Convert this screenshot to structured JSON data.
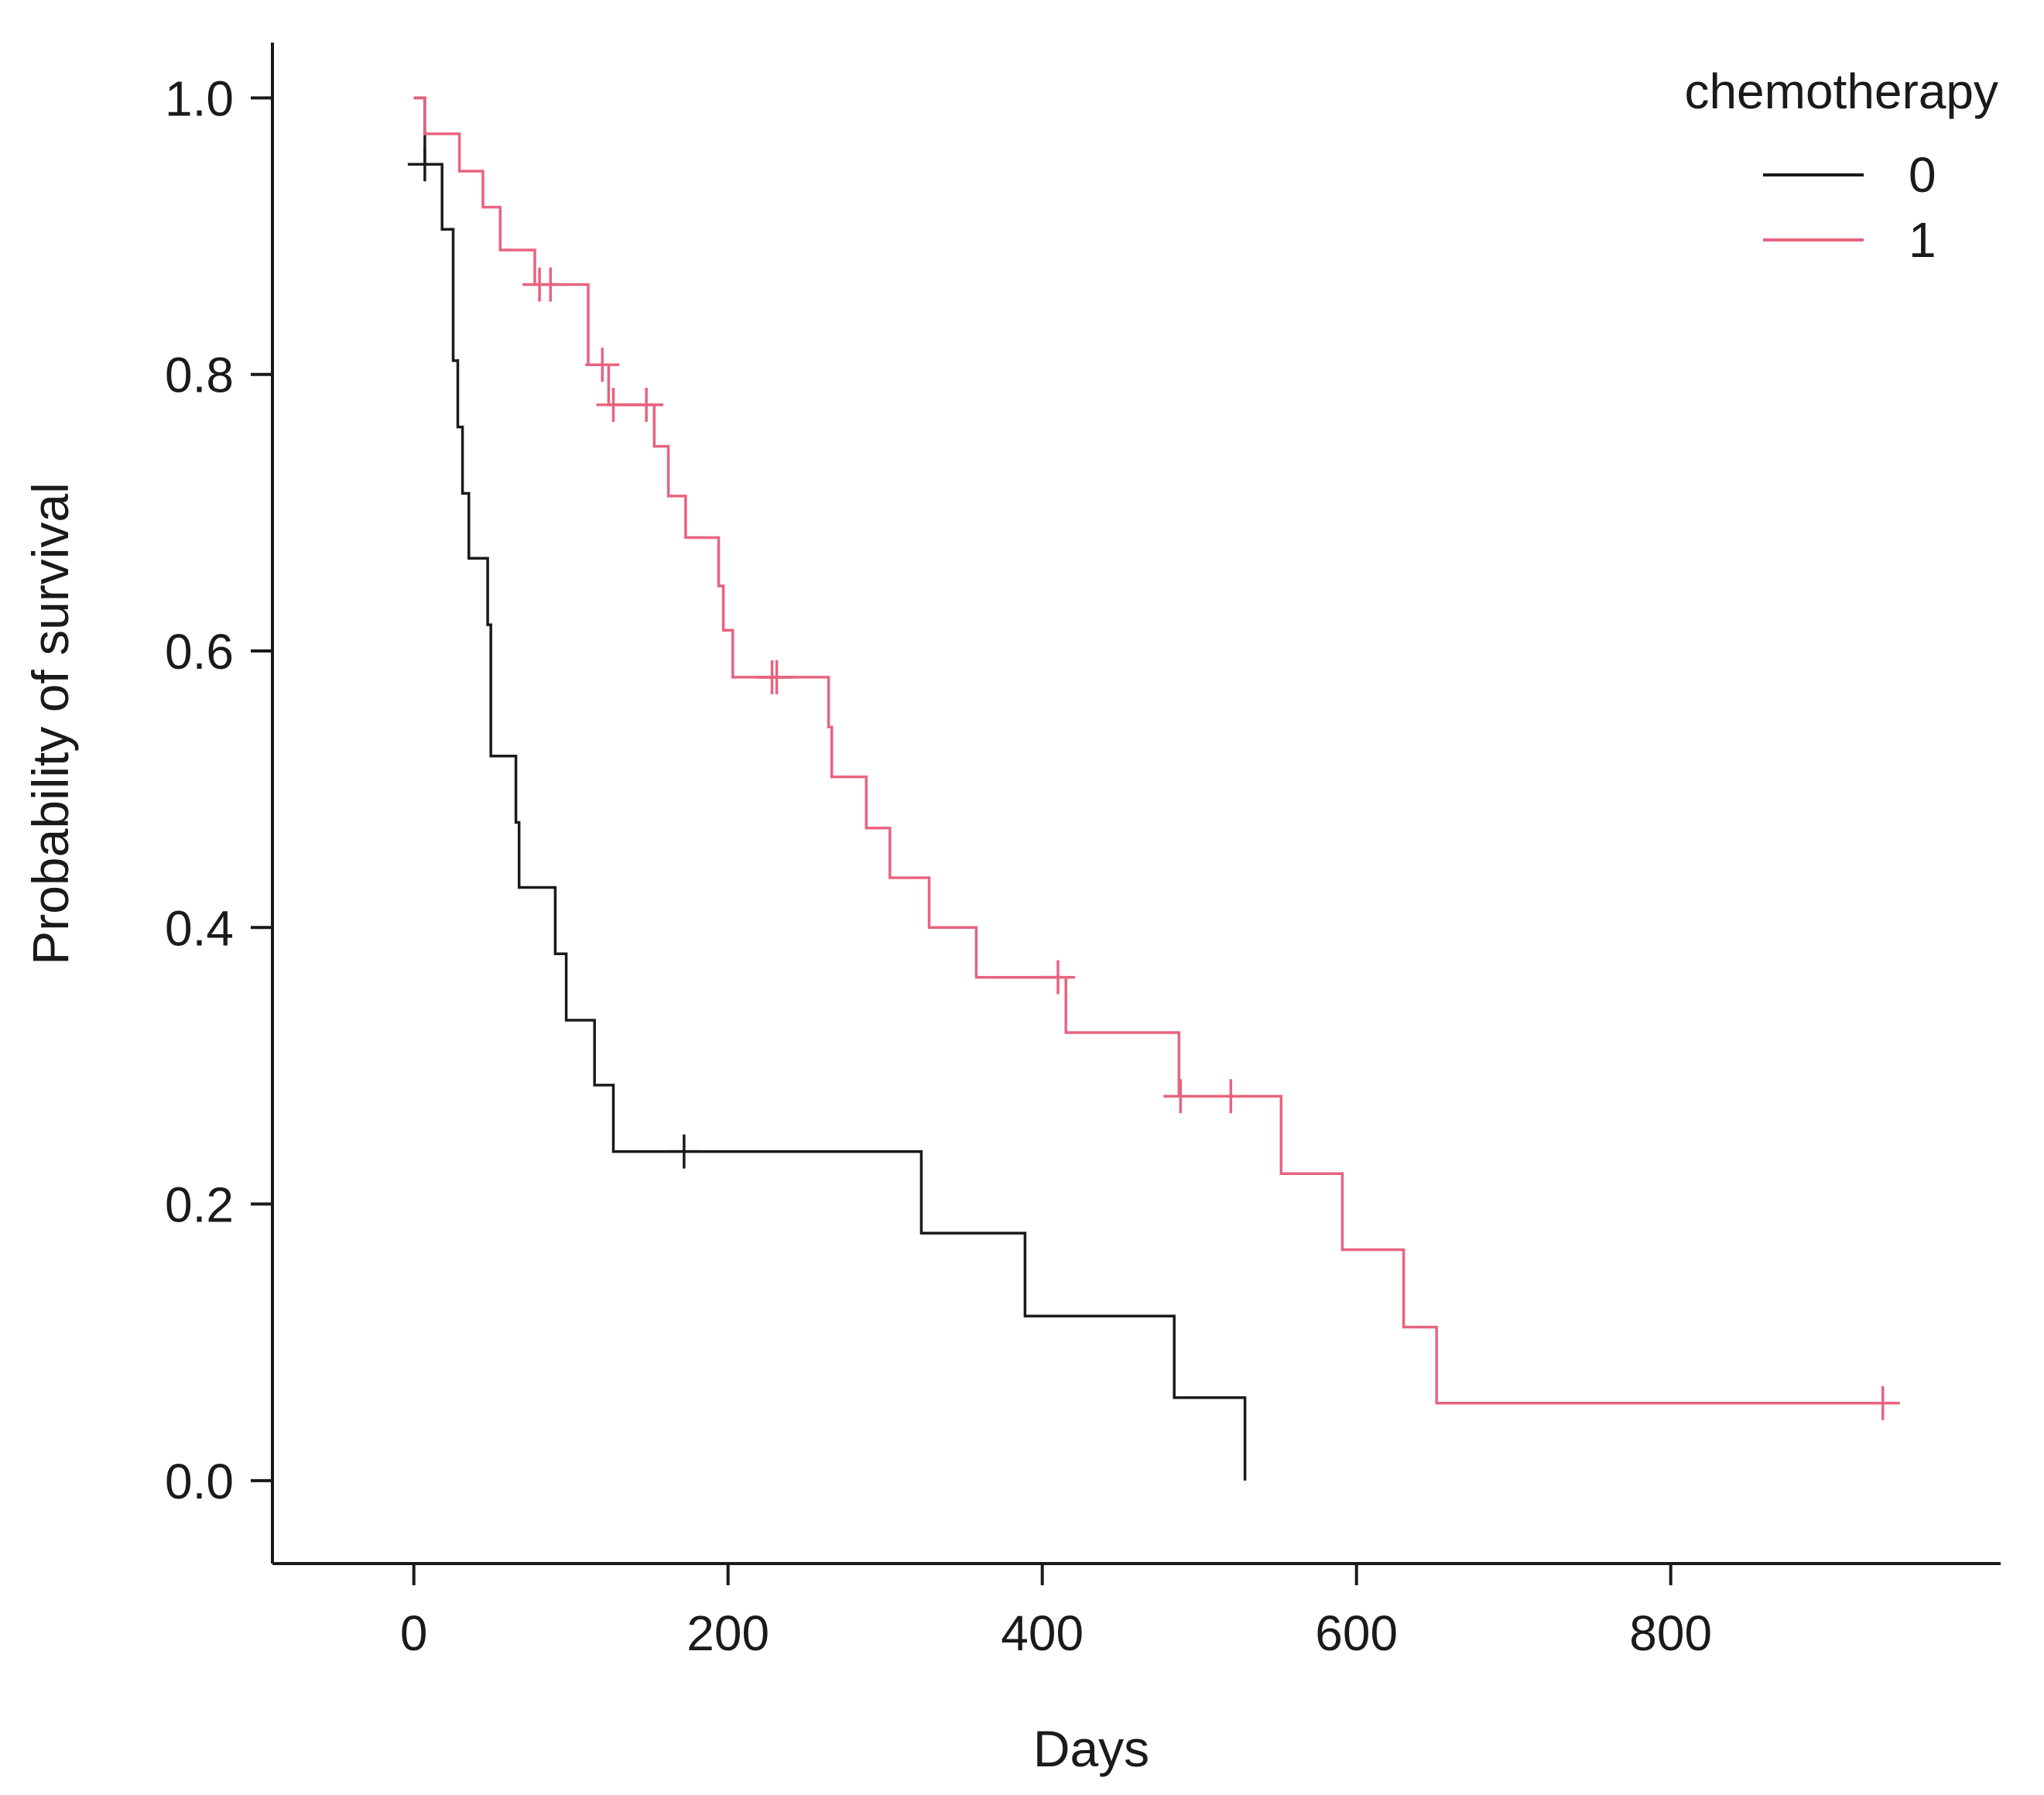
{
  "chart_data": {
    "type": "line",
    "subtype": "kaplan-meier step survival curves",
    "title": "",
    "xlabel": "Days",
    "ylabel": "Probability of survival",
    "xlim": [
      -90,
      1010
    ],
    "ylim": [
      -0.06,
      1.04
    ],
    "xticks": [
      0,
      200,
      400,
      600,
      800
    ],
    "yticks": [
      0.0,
      0.2,
      0.4,
      0.6,
      0.8,
      1.0
    ],
    "xtick_labels": [
      "0",
      "200",
      "400",
      "600",
      "800"
    ],
    "ytick_labels": [
      "0.0",
      "0.2",
      "0.4",
      "0.6",
      "0.8",
      "1.0"
    ],
    "grid": false,
    "legend": {
      "title": "chemotherapy",
      "position": "top-right",
      "entries": [
        "0",
        "1"
      ]
    },
    "series": [
      {
        "name": "0",
        "color": "#1a1a1a",
        "steps": [
          [
            0,
            1.0
          ],
          [
            7,
            0.952
          ],
          [
            18,
            0.905
          ],
          [
            25,
            0.81
          ],
          [
            28,
            0.762
          ],
          [
            31,
            0.714
          ],
          [
            35,
            0.667
          ],
          [
            47,
            0.619
          ],
          [
            49,
            0.524
          ],
          [
            65,
            0.476
          ],
          [
            67,
            0.429
          ],
          [
            90,
            0.381
          ],
          [
            97,
            0.333
          ],
          [
            115,
            0.286
          ],
          [
            127,
            0.238
          ],
          [
            323,
            0.179
          ],
          [
            389,
            0.119
          ],
          [
            484,
            0.06
          ],
          [
            529,
            0.0
          ]
        ],
        "end_x": 529,
        "censor_x": [
          7,
          172
        ]
      },
      {
        "name": "1",
        "color": "#e8637f",
        "steps": [
          [
            0,
            1.0
          ],
          [
            7,
            0.974
          ],
          [
            29,
            0.947
          ],
          [
            44,
            0.921
          ],
          [
            55,
            0.89
          ],
          [
            77,
            0.865
          ],
          [
            111,
            0.807
          ],
          [
            124,
            0.778
          ],
          [
            153,
            0.748
          ],
          [
            162,
            0.712
          ],
          [
            173,
            0.682
          ],
          [
            194,
            0.647
          ],
          [
            197,
            0.615
          ],
          [
            203,
            0.581
          ],
          [
            264,
            0.545
          ],
          [
            266,
            0.509
          ],
          [
            288,
            0.472
          ],
          [
            303,
            0.436
          ],
          [
            328,
            0.4
          ],
          [
            358,
            0.364
          ],
          [
            415,
            0.324
          ],
          [
            487,
            0.278
          ],
          [
            552,
            0.222
          ],
          [
            591,
            0.167
          ],
          [
            630,
            0.111
          ],
          [
            651,
            0.056
          ]
        ],
        "end_x": 945,
        "censor_x": [
          80,
          87,
          120,
          127,
          148,
          228,
          231,
          410,
          488,
          520,
          935
        ]
      }
    ]
  }
}
